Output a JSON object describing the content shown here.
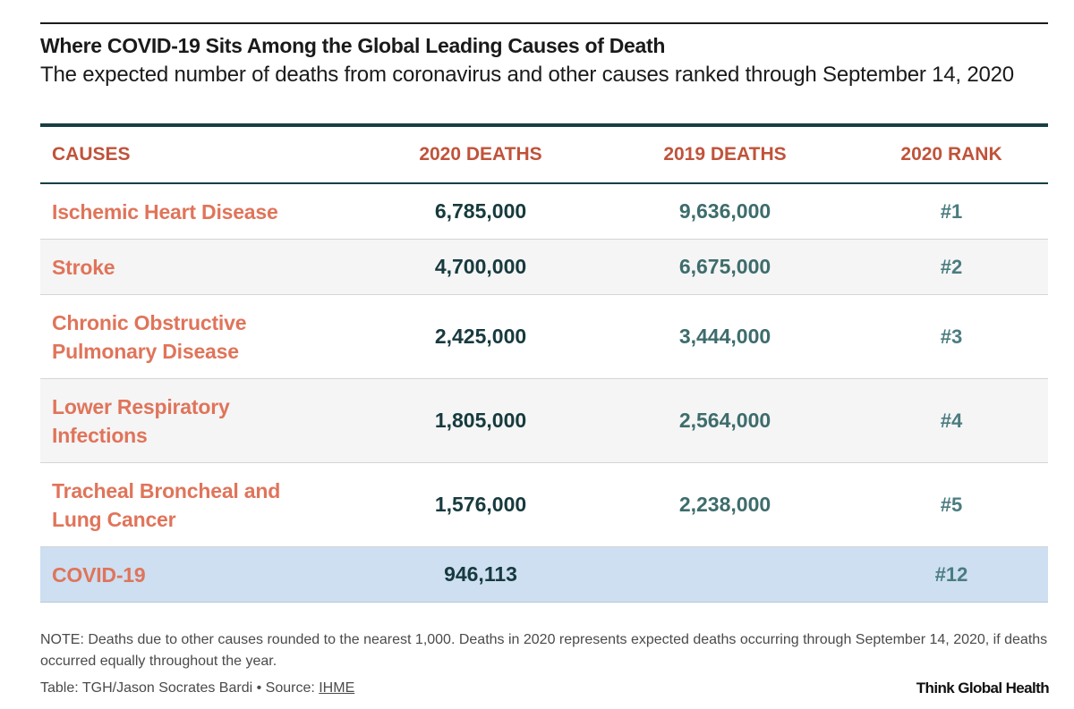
{
  "title": "Where COVID-19 Sits Among the Global Leading Causes of Death",
  "subtitle": "The expected number of deaths from coronavirus and other causes ranked through September 14, 2020",
  "table": {
    "headers": [
      "CAUSES",
      "2020 DEATHS",
      "2019 DEATHS",
      "2020 RANK"
    ],
    "rows": [
      {
        "cause": "Ischemic Heart Disease",
        "deaths_2020": "6,785,000",
        "deaths_2019": "9,636,000",
        "rank": "#1"
      },
      {
        "cause": "Stroke",
        "deaths_2020": "4,700,000",
        "deaths_2019": "6,675,000",
        "rank": "#2"
      },
      {
        "cause": "Chronic Obstructive Pulmonary Disease",
        "deaths_2020": "2,425,000",
        "deaths_2019": "3,444,000",
        "rank": "#3"
      },
      {
        "cause": "Lower Respiratory Infections",
        "deaths_2020": "1,805,000",
        "deaths_2019": "2,564,000",
        "rank": "#4"
      },
      {
        "cause": "Tracheal Broncheal and Lung Cancer",
        "deaths_2020": "1,576,000",
        "deaths_2019": "2,238,000",
        "rank": "#5"
      },
      {
        "cause": "COVID-19",
        "deaths_2020": "946,113",
        "deaths_2019": "",
        "rank": "#12"
      }
    ]
  },
  "footer": {
    "note": "NOTE: Deaths due to other causes rounded to the nearest 1,000. Deaths in 2020 represents expected deaths occurring through September 14, 2020, if deaths occurred equally throughout the year.",
    "source_prefix": "Table: TGH/Jason Socrates Bardi • Source: ",
    "source_link": "IHME",
    "brand": "Think Global Health"
  },
  "colors": {
    "header_text": "#c0533a",
    "cause_text": "#e0745a",
    "rule": "#173f44",
    "highlight_row": "#cddff1"
  }
}
